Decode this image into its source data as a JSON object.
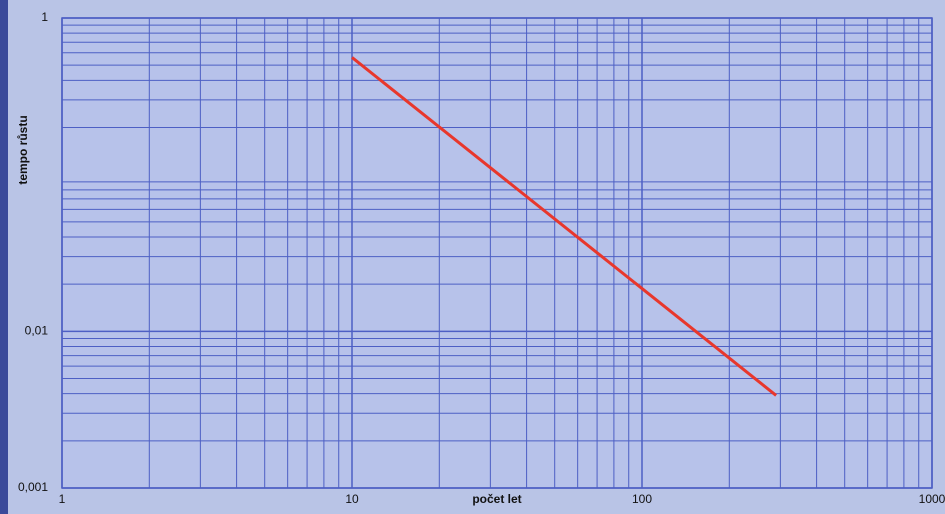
{
  "chart_data": {
    "type": "line",
    "x_label": "počet let",
    "y_label": "tempo růstu",
    "x": [
      10,
      290
    ],
    "series": [
      {
        "color": "#e8372c",
        "values": [
          0.56,
          0.0039
        ]
      }
    ],
    "xlim": [
      1,
      1000
    ],
    "ylim": [
      0.001,
      1
    ],
    "log_x": true,
    "log_y": true,
    "grid": true,
    "xticks": [
      1,
      10,
      100,
      1000
    ],
    "yticks": [
      {
        "value": 0.001,
        "label": "0,001"
      },
      {
        "value": 0.01,
        "label": "0,01"
      },
      1
    ],
    "background": "#b7c2ea",
    "grid_color": "#4d5fc4"
  }
}
